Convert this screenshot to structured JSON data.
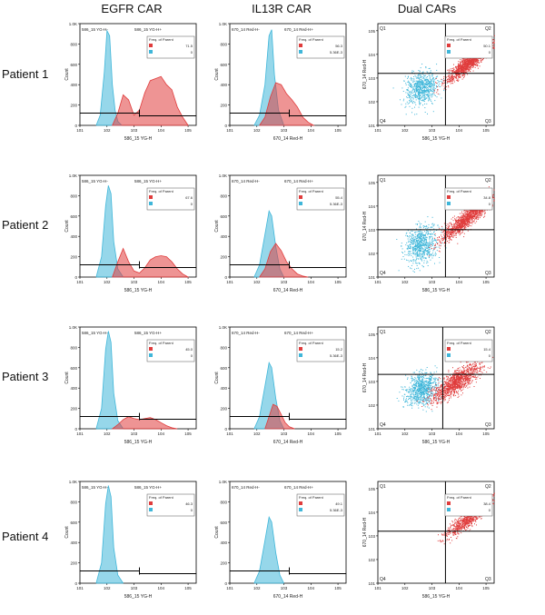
{
  "column_titles": [
    "EGFR CAR",
    "IL13R     CAR",
    "Dual CARs"
  ],
  "row_labels": [
    "Patient 1",
    "Patient 2",
    "Patient 3",
    "Patient 4"
  ],
  "colors": {
    "positive": "#e03c3c",
    "negative": "#3fb6d9",
    "axis": "#000000"
  },
  "chart_data": [
    {
      "type": "area",
      "panel": "EGFR CAR / Patient 1",
      "xlabel": "586_15 YG-H",
      "ylabel": "Count",
      "gate_left": "586_15 YG-H-",
      "gate_right": "586_15 YG-H+",
      "legend_title": "Freq. of Parent",
      "legend": [
        {
          "name": "positive",
          "value": "71.5"
        },
        {
          "name": "negative",
          "value": "0"
        }
      ],
      "yticks": [
        "0",
        "200",
        "400",
        "600",
        "800",
        "1.0K"
      ],
      "xticks": [
        "10^1",
        "10^2",
        "10^3",
        "10^4",
        "10^5"
      ],
      "ylim": [
        0,
        1000
      ],
      "series": [
        {
          "name": "negative",
          "x": [
            1.6,
            1.75,
            1.9,
            2.0,
            2.1,
            2.2,
            2.3,
            2.4,
            2.55
          ],
          "y": [
            0,
            100,
            520,
            930,
            880,
            400,
            150,
            40,
            0
          ]
        },
        {
          "name": "positive",
          "x": [
            2.2,
            2.4,
            2.6,
            2.8,
            3.0,
            3.2,
            3.4,
            3.6,
            3.8,
            4.0,
            4.2,
            4.4,
            4.6,
            4.8,
            5.0
          ],
          "y": [
            0,
            120,
            300,
            250,
            100,
            150,
            320,
            440,
            460,
            480,
            400,
            350,
            180,
            80,
            0
          ]
        }
      ]
    },
    {
      "type": "area",
      "panel": "IL13R CAR / Patient 1",
      "xlabel": "670_14 Red-H",
      "ylabel": "Count",
      "gate_left": "670_14 Red-H-",
      "gate_right": "670_14 Red-H+",
      "legend_title": "Freq. of Parent",
      "legend": [
        {
          "name": "positive",
          "value": "56.3"
        },
        {
          "name": "negative",
          "value": "5.36E-3"
        }
      ],
      "yticks": [
        "0",
        "200",
        "400",
        "600",
        "800",
        "1.0K"
      ],
      "xticks": [
        "10^1",
        "10^2",
        "10^3",
        "10^4",
        "10^5"
      ],
      "ylim": [
        0,
        1000
      ],
      "series": [
        {
          "name": "negative",
          "x": [
            1.9,
            2.1,
            2.3,
            2.45,
            2.55,
            2.65,
            2.8,
            3.0
          ],
          "y": [
            0,
            100,
            400,
            880,
            940,
            500,
            150,
            0
          ]
        },
        {
          "name": "positive",
          "x": [
            2.1,
            2.3,
            2.5,
            2.7,
            2.9,
            3.1,
            3.3,
            3.5,
            3.7,
            3.9,
            4.1
          ],
          "y": [
            0,
            80,
            280,
            420,
            400,
            310,
            250,
            180,
            80,
            30,
            0
          ]
        }
      ]
    },
    {
      "type": "scatter",
      "panel": "Dual CARs / Patient 1",
      "xlabel": "586_15 YG-H",
      "ylabel": "670_14 Red-H",
      "quadrants": [
        "Q1",
        "Q2",
        "Q3",
        "Q4"
      ],
      "legend_title": "Freq. of Parent",
      "legend": [
        {
          "name": "positive",
          "value": "50.1"
        },
        {
          "name": "negative",
          "value": "0"
        }
      ],
      "gate_x": 3.5,
      "gate_y": 3.2,
      "clusters": [
        {
          "name": "negative",
          "cx": 2.6,
          "cy": 2.6,
          "sx": 0.3,
          "sy": 0.35,
          "n": 700,
          "corr": 0.2
        },
        {
          "name": "positive",
          "cx": 4.4,
          "cy": 3.7,
          "sx": 0.45,
          "sy": 0.42,
          "n": 1400,
          "corr": 0.92
        }
      ]
    },
    {
      "type": "area",
      "panel": "EGFR CAR / Patient 2",
      "xlabel": "586_15 YG-H",
      "ylabel": "Count",
      "gate_left": "586_15 YG-H-",
      "gate_right": "586_15 YG-H+",
      "legend_title": "Freq. of Parent",
      "legend": [
        {
          "name": "positive",
          "value": "67.6"
        },
        {
          "name": "negative",
          "value": "0"
        }
      ],
      "yticks": [
        "0",
        "200",
        "400",
        "600",
        "800",
        "1.0K"
      ],
      "xticks": [
        "10^1",
        "10^2",
        "10^3",
        "10^4",
        "10^5"
      ],
      "ylim": [
        0,
        1000
      ],
      "series": [
        {
          "name": "negative",
          "x": [
            1.6,
            1.8,
            1.95,
            2.05,
            2.15,
            2.25,
            2.4,
            2.6
          ],
          "y": [
            0,
            200,
            700,
            900,
            820,
            350,
            80,
            0
          ]
        },
        {
          "name": "positive",
          "x": [
            2.2,
            2.4,
            2.6,
            2.8,
            3.0,
            3.2,
            3.4,
            3.6,
            3.8,
            4.0,
            4.2,
            4.4,
            4.6,
            4.8,
            5.0
          ],
          "y": [
            0,
            150,
            280,
            150,
            60,
            40,
            90,
            170,
            200,
            210,
            200,
            150,
            80,
            30,
            0
          ]
        }
      ]
    },
    {
      "type": "area",
      "panel": "IL13R CAR / Patient 2",
      "xlabel": "670_14 Red-H",
      "ylabel": "Count",
      "gate_left": "670_14 Red-H-",
      "gate_right": "670_14 Red-H+",
      "legend_title": "Freq. of Parent",
      "legend": [
        {
          "name": "positive",
          "value": "55.4"
        },
        {
          "name": "negative",
          "value": "5.36E-3"
        }
      ],
      "yticks": [
        "0",
        "200",
        "400",
        "600",
        "800",
        "1.0K"
      ],
      "xticks": [
        "10^1",
        "10^2",
        "10^3",
        "10^4",
        "10^5"
      ],
      "ylim": [
        0,
        1000
      ],
      "series": [
        {
          "name": "negative",
          "x": [
            1.9,
            2.1,
            2.3,
            2.45,
            2.55,
            2.7,
            2.85,
            3.0
          ],
          "y": [
            0,
            120,
            420,
            650,
            600,
            300,
            80,
            0
          ]
        },
        {
          "name": "positive",
          "x": [
            2.1,
            2.3,
            2.5,
            2.7,
            2.9,
            3.1,
            3.3,
            3.5,
            3.7,
            3.9
          ],
          "y": [
            0,
            80,
            250,
            330,
            260,
            150,
            80,
            30,
            10,
            0
          ]
        }
      ]
    },
    {
      "type": "scatter",
      "panel": "Dual CARs / Patient 2",
      "xlabel": "586_15 YG-H",
      "ylabel": "670_14 Red-H",
      "quadrants": [
        "Q1",
        "Q2",
        "Q3",
        "Q4"
      ],
      "legend_title": "Freq. of Parent",
      "legend": [
        {
          "name": "positive",
          "value": "34.8"
        },
        {
          "name": "negative",
          "value": "0"
        }
      ],
      "gate_x": 3.5,
      "gate_y": 3.0,
      "clusters": [
        {
          "name": "negative",
          "cx": 2.6,
          "cy": 2.4,
          "sx": 0.3,
          "sy": 0.4,
          "n": 700,
          "corr": 0.2
        },
        {
          "name": "positive",
          "cx": 4.3,
          "cy": 3.5,
          "sx": 0.5,
          "sy": 0.5,
          "n": 1400,
          "corr": 0.92
        }
      ]
    },
    {
      "type": "area",
      "panel": "EGFR CAR / Patient 3",
      "xlabel": "586_15 YG-H",
      "ylabel": "Count",
      "gate_left": "586_15 YG-H-",
      "gate_right": "586_15 YG-H+",
      "legend_title": "Freq. of Parent",
      "legend": [
        {
          "name": "positive",
          "value": "45.0"
        },
        {
          "name": "negative",
          "value": "0"
        }
      ],
      "yticks": [
        "0",
        "200",
        "400",
        "600",
        "800",
        "1.0K"
      ],
      "xticks": [
        "10^1",
        "10^2",
        "10^3",
        "10^4",
        "10^5"
      ],
      "ylim": [
        0,
        1000
      ],
      "series": [
        {
          "name": "negative",
          "x": [
            1.6,
            1.8,
            1.95,
            2.05,
            2.15,
            2.25,
            2.4,
            2.6
          ],
          "y": [
            0,
            200,
            780,
            960,
            850,
            350,
            80,
            0
          ]
        },
        {
          "name": "positive",
          "x": [
            2.2,
            2.4,
            2.6,
            2.8,
            3.0,
            3.2,
            3.4,
            3.6,
            3.8,
            4.0,
            4.2,
            4.4,
            4.6
          ],
          "y": [
            0,
            40,
            90,
            120,
            100,
            90,
            100,
            110,
            90,
            60,
            30,
            10,
            0
          ]
        }
      ]
    },
    {
      "type": "area",
      "panel": "IL13R CAR / Patient 3",
      "xlabel": "670_14 Red-H",
      "ylabel": "Count",
      "gate_left": "670_14 Red-H-",
      "gate_right": "670_14 Red-H+",
      "legend_title": "Freq. of Parent",
      "legend": [
        {
          "name": "positive",
          "value": "15.2"
        },
        {
          "name": "negative",
          "value": "5.36E-3"
        }
      ],
      "yticks": [
        "0",
        "200",
        "400",
        "600",
        "800",
        "1.0K"
      ],
      "xticks": [
        "10^1",
        "10^2",
        "10^3",
        "10^4",
        "10^5"
      ],
      "ylim": [
        0,
        1000
      ],
      "series": [
        {
          "name": "negative",
          "x": [
            1.9,
            2.1,
            2.3,
            2.45,
            2.55,
            2.7,
            2.85,
            3.0
          ],
          "y": [
            0,
            120,
            420,
            650,
            600,
            300,
            80,
            0
          ]
        },
        {
          "name": "positive",
          "x": [
            2.3,
            2.45,
            2.6,
            2.75,
            2.9,
            3.05,
            3.2,
            3.4
          ],
          "y": [
            0,
            120,
            240,
            220,
            140,
            60,
            20,
            0
          ]
        }
      ]
    },
    {
      "type": "scatter",
      "panel": "Dual CARs / Patient 3",
      "xlabel": "586_15 YG-H",
      "ylabel": "670_14 Red-H",
      "quadrants": [
        "Q1",
        "Q2",
        "Q3",
        "Q4"
      ],
      "legend_title": "Freq. of Parent",
      "legend": [
        {
          "name": "positive",
          "value": "15.4"
        },
        {
          "name": "negative",
          "value": "0"
        }
      ],
      "gate_x": 3.4,
      "gate_y": 3.3,
      "clusters": [
        {
          "name": "negative",
          "cx": 2.6,
          "cy": 2.7,
          "sx": 0.3,
          "sy": 0.35,
          "n": 800,
          "corr": 0.2
        },
        {
          "name": "positive",
          "cx": 3.9,
          "cy": 3.0,
          "sx": 0.45,
          "sy": 0.4,
          "n": 1200,
          "corr": 0.8
        }
      ]
    },
    {
      "type": "area",
      "panel": "EGFR CAR / Patient 4",
      "xlabel": "586_15 YG-H",
      "ylabel": "Count",
      "gate_left": "586_15 YG-H-",
      "gate_right": "586_15 YG-H+",
      "legend_title": "Freq. of Parent",
      "legend": [
        {
          "name": "positive",
          "value": "46.3"
        },
        {
          "name": "negative",
          "value": "0"
        }
      ],
      "yticks": [
        "0",
        "200",
        "400",
        "600",
        "800",
        "1.0K"
      ],
      "xticks": [
        "10^1",
        "10^2",
        "10^3",
        "10^4",
        "10^5"
      ],
      "ylim": [
        0,
        1000
      ],
      "series": [
        {
          "name": "negative",
          "x": [
            1.6,
            1.8,
            1.95,
            2.05,
            2.15,
            2.25,
            2.4,
            2.6
          ],
          "y": [
            0,
            200,
            780,
            960,
            850,
            350,
            80,
            0
          ]
        }
      ]
    },
    {
      "type": "area",
      "panel": "IL13R CAR / Patient 4",
      "xlabel": "670_14 Red-H",
      "ylabel": "Count",
      "gate_left": "670_14 Red-H-",
      "gate_right": "670_14 Red-H+",
      "legend_title": "Freq. of Parent",
      "legend": [
        {
          "name": "positive",
          "value": "49.1"
        },
        {
          "name": "negative",
          "value": "5.36E-3"
        }
      ],
      "yticks": [
        "0",
        "200",
        "400",
        "600",
        "800",
        "1.0K"
      ],
      "xticks": [
        "10^1",
        "10^2",
        "10^3",
        "10^4",
        "10^5"
      ],
      "ylim": [
        0,
        1000
      ],
      "series": [
        {
          "name": "negative",
          "x": [
            1.9,
            2.1,
            2.3,
            2.45,
            2.55,
            2.7,
            2.85,
            3.0
          ],
          "y": [
            0,
            120,
            420,
            650,
            600,
            300,
            80,
            0
          ]
        }
      ]
    },
    {
      "type": "scatter",
      "panel": "Dual CARs / Patient 4",
      "xlabel": "586_15 YG-H",
      "ylabel": "670_14 Red-H",
      "quadrants": [
        "Q1",
        "Q2",
        "Q3",
        "Q4"
      ],
      "legend_title": "Freq. of Parent",
      "legend": [
        {
          "name": "positive",
          "value": "38.4"
        },
        {
          "name": "negative",
          "value": "0"
        }
      ],
      "gate_x": 3.5,
      "gate_y": 3.2,
      "clusters": [
        {
          "name": "positive",
          "cx": 4.4,
          "cy": 3.8,
          "sx": 0.45,
          "sy": 0.42,
          "n": 900,
          "corr": 0.92
        }
      ]
    }
  ]
}
